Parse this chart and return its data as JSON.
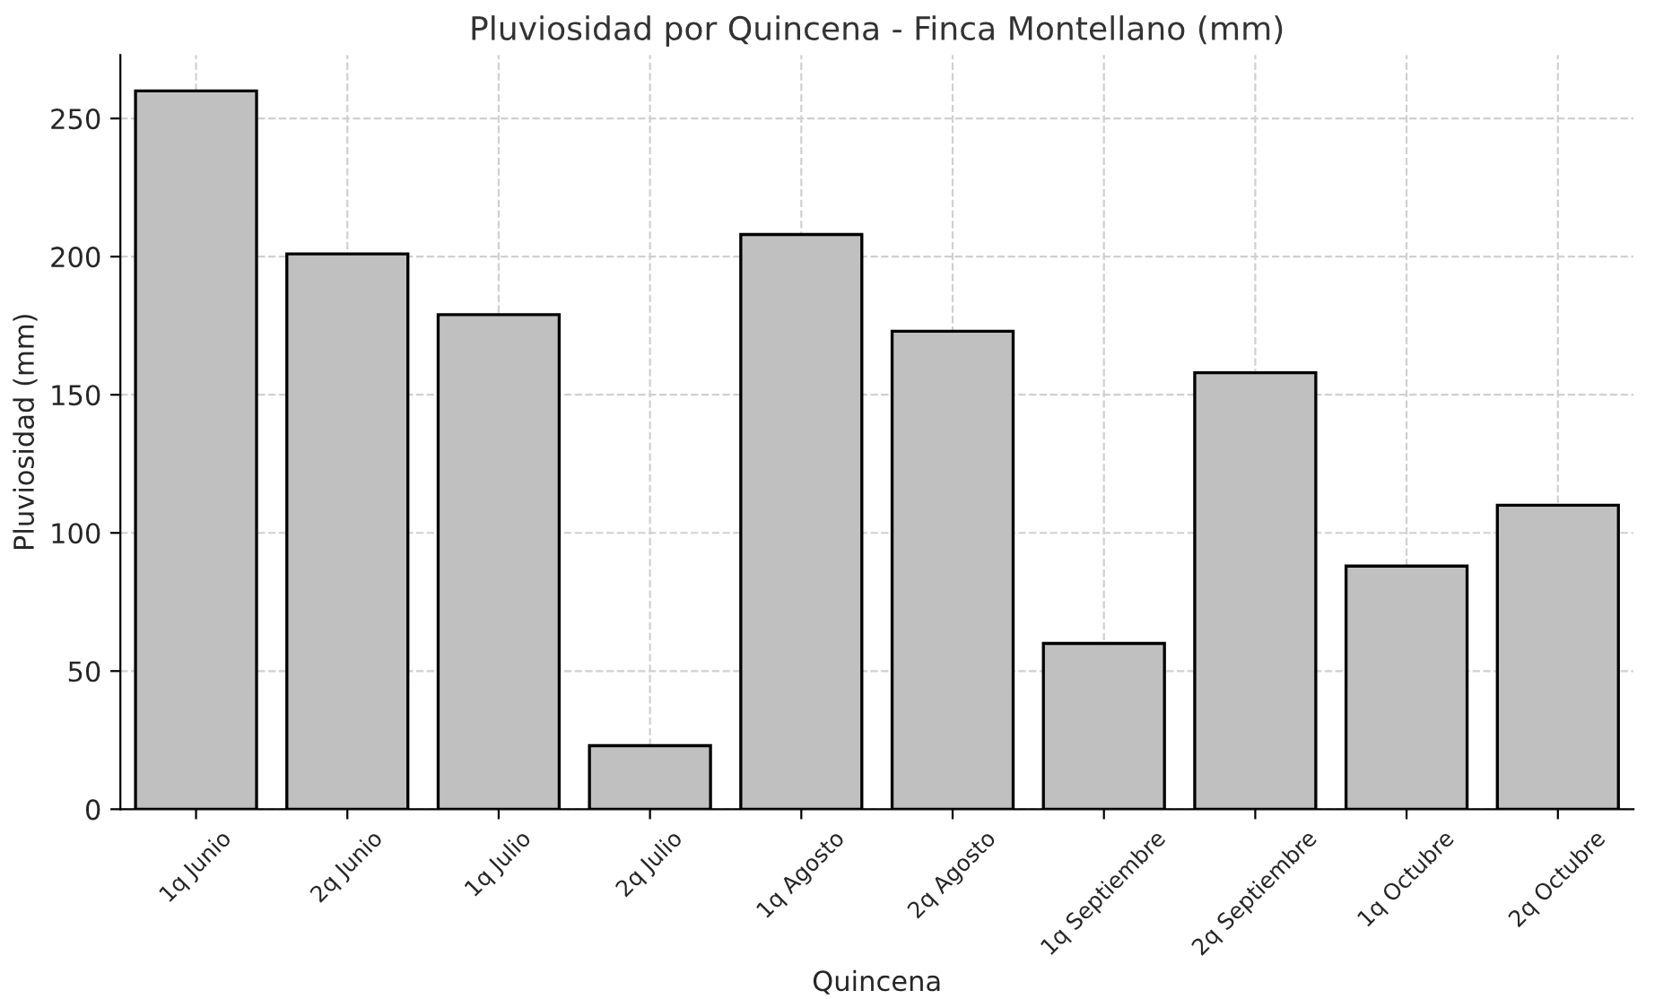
{
  "chart_data": {
    "type": "bar",
    "title": "Pluviosidad por Quincena - Finca Montellano (mm)",
    "xlabel": "Quincena",
    "ylabel": "Pluviosidad (mm)",
    "categories": [
      "1q Junio",
      "2q Junio",
      "1q Julio",
      "2q Julio",
      "1q Agosto",
      "2q Agosto",
      "1q Septiembre",
      "2q Septiembre",
      "1q Octubre",
      "2q Octubre"
    ],
    "values": [
      260,
      201,
      179,
      23,
      208,
      173,
      60,
      158,
      88,
      110
    ],
    "color": "#c0c0c0",
    "ylim": [
      0,
      273
    ],
    "yticks": [
      0,
      50,
      100,
      150,
      200,
      250
    ],
    "grid": true
  }
}
